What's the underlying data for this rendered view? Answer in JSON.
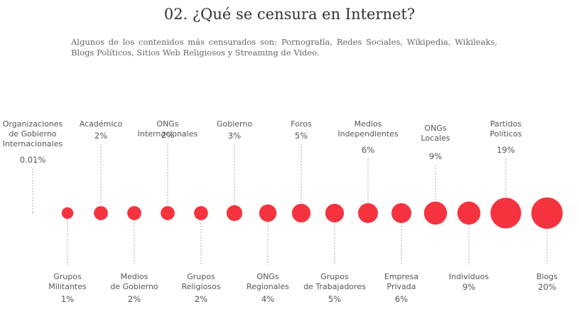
{
  "header": {
    "title": "02. ¿Qué se censura en Internet?",
    "subtitle": "Algunos de los contenidos más censurados son: Pornografía, Redes Sociales, Wikipedia, Wikileaks, Blogs Políticos, Sitios Web Religiosos y Streaming de Video."
  },
  "chart_data": {
    "type": "scatter",
    "title": "02. ¿Qué se censura en Internet?",
    "subtitle": "Algunos de los contenidos más censurados son: Pornografía, Redes Sociales, Wikipedia, Wikileaks, Blogs Políticos, Sitios Web Religiosos y Streaming de Video.",
    "encoding": "bubble size proportional to percentage",
    "accent_color": "#f5333f",
    "points": [
      {
        "label": [
          "Organizaciones",
          "de Gobierno",
          "Internacionales"
        ],
        "value": 0.01,
        "display": "0.01%",
        "side": "top"
      },
      {
        "label": [
          "Grupos",
          "Militantes"
        ],
        "value": 1,
        "display": "1%",
        "side": "bottom"
      },
      {
        "label": [
          "Académico"
        ],
        "value": 2,
        "display": "2%",
        "side": "top"
      },
      {
        "label": [
          "Medios",
          "de Gobierno"
        ],
        "value": 2,
        "display": "2%",
        "side": "bottom"
      },
      {
        "label": [
          "ONGs",
          "Internacionales"
        ],
        "value": 2,
        "display": "2%",
        "side": "top"
      },
      {
        "label": [
          "Grupos",
          "Religiosos"
        ],
        "value": 2,
        "display": "2%",
        "side": "bottom"
      },
      {
        "label": [
          "Gobierno"
        ],
        "value": 3,
        "display": "3%",
        "side": "top"
      },
      {
        "label": [
          "ONGs",
          "Regionales"
        ],
        "value": 4,
        "display": "4%",
        "side": "bottom"
      },
      {
        "label": [
          "Foros"
        ],
        "value": 5,
        "display": "5%",
        "side": "top"
      },
      {
        "label": [
          "Grupos",
          "de Trabajadores"
        ],
        "value": 5,
        "display": "5%",
        "side": "bottom"
      },
      {
        "label": [
          "Medios",
          "Independientes"
        ],
        "value": 6,
        "display": "6%",
        "side": "top"
      },
      {
        "label": [
          "Empresa",
          "Privada"
        ],
        "value": 6,
        "display": "6%",
        "side": "bottom"
      },
      {
        "label": [
          "ONGs",
          "Locales"
        ],
        "value": 9,
        "display": "9%",
        "side": "top"
      },
      {
        "label": [
          "Individuos"
        ],
        "value": 9,
        "display": "9%",
        "side": "bottom"
      },
      {
        "label": [
          "Partidos",
          "Políticos"
        ],
        "value": 19,
        "display": "19%",
        "side": "top"
      },
      {
        "label": [
          "Blogs"
        ],
        "value": 20,
        "display": "20%",
        "side": "bottom"
      }
    ]
  }
}
